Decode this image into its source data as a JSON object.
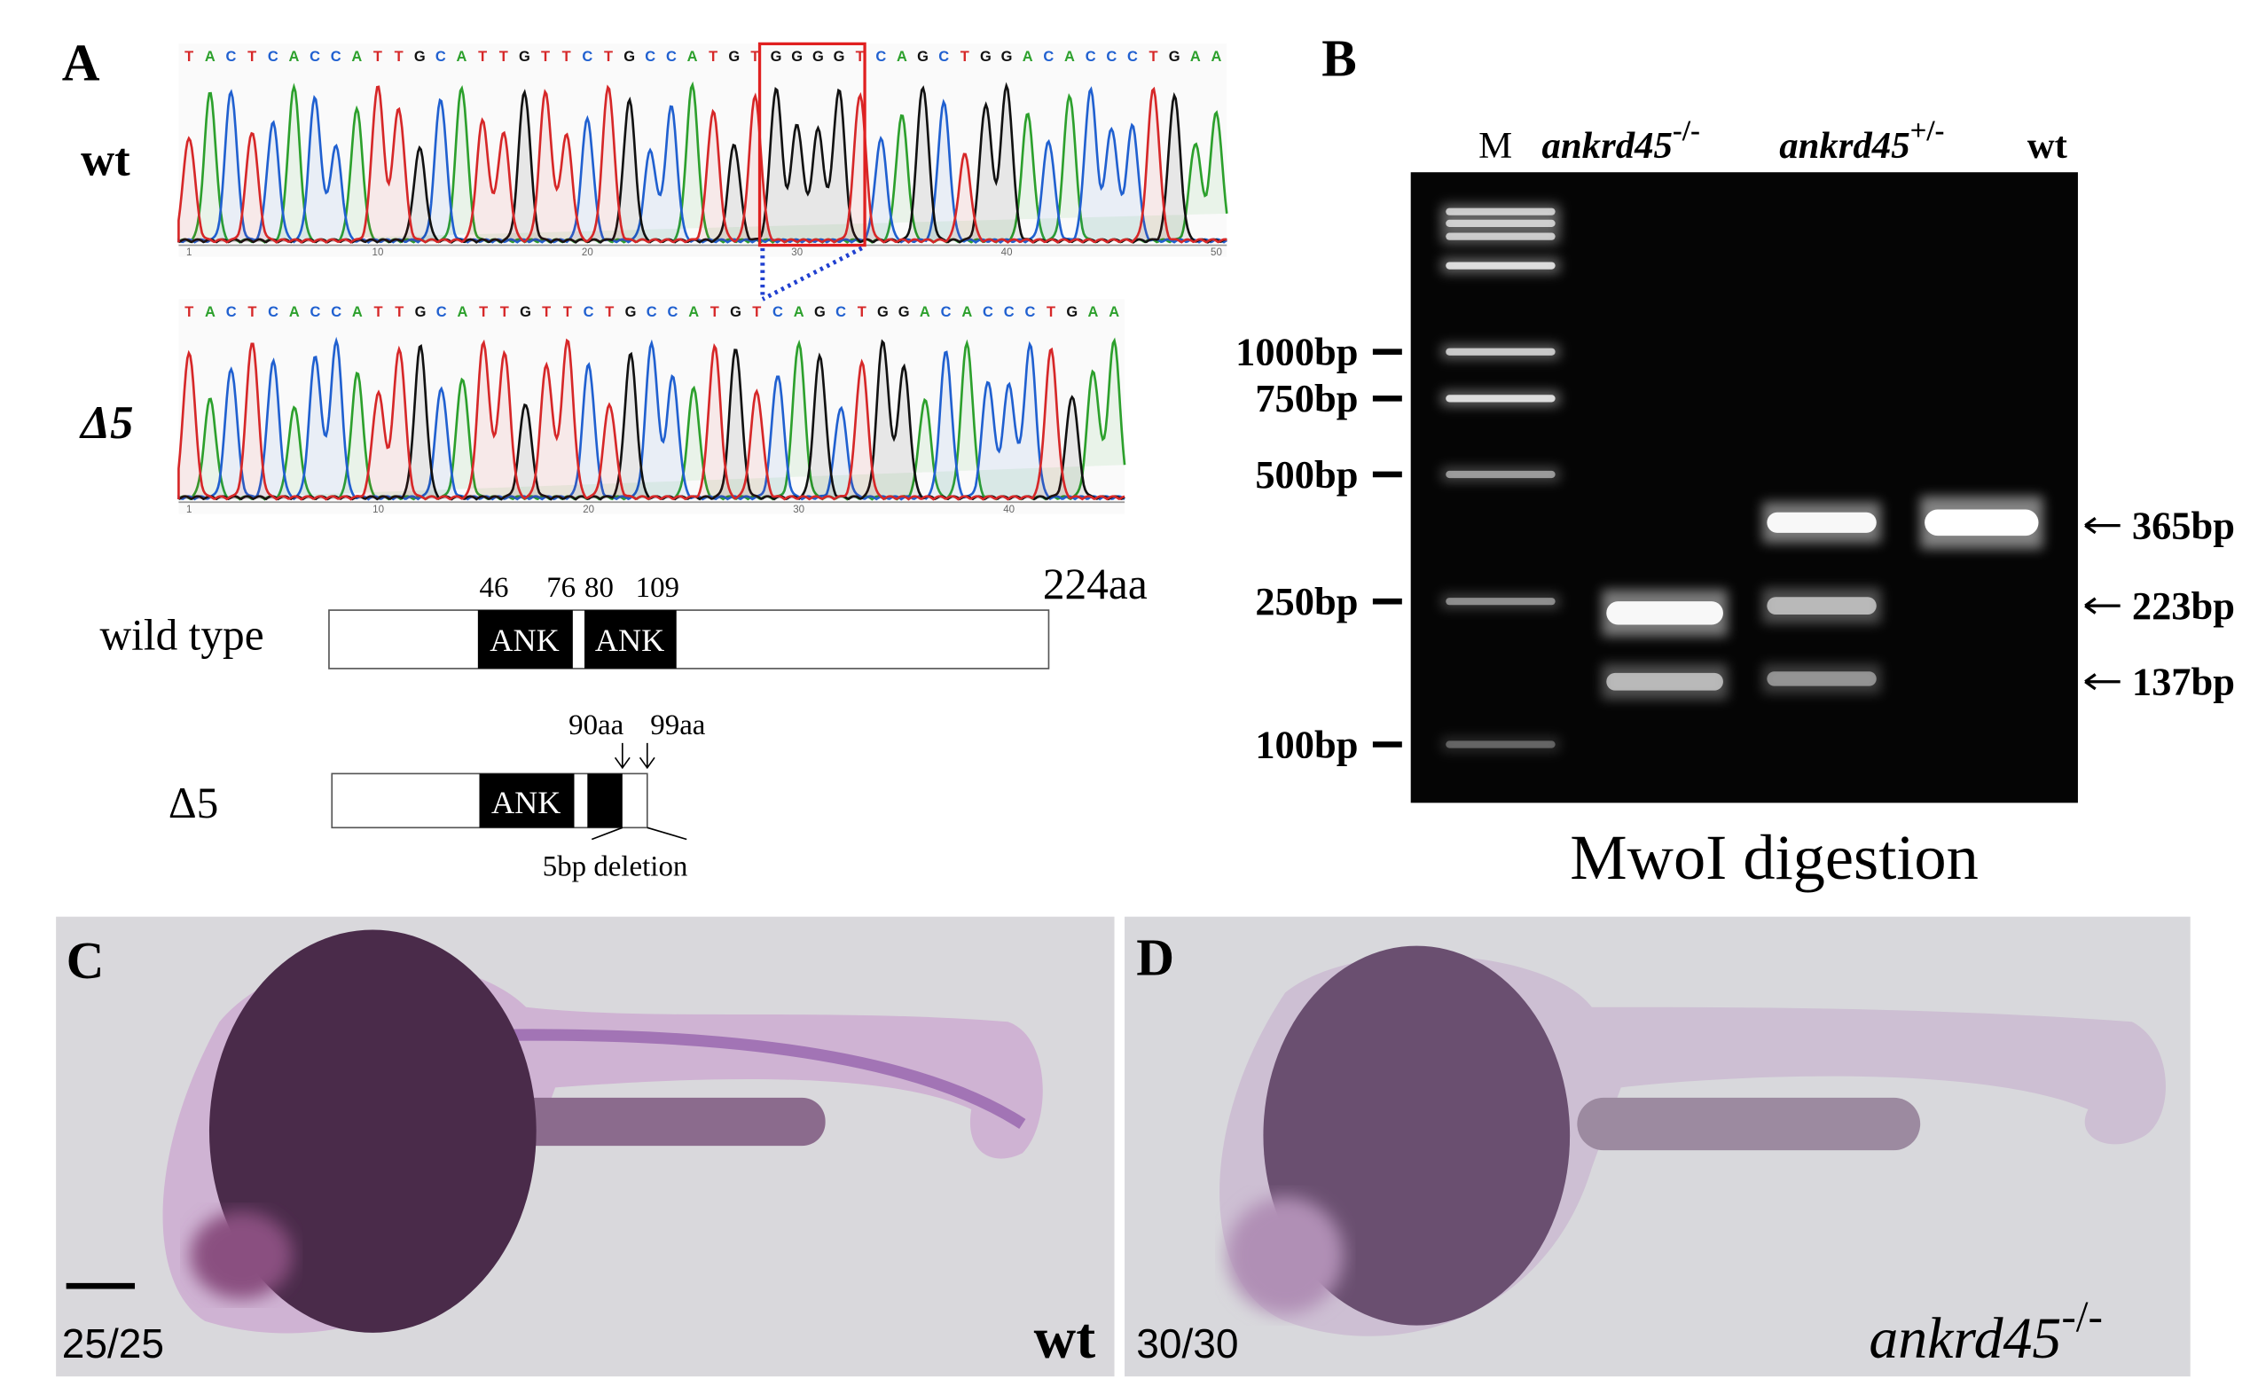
{
  "panel_a": {
    "label": "A",
    "wt_label": "wt",
    "mut_label": "Δ5",
    "wt_sequence": [
      "T",
      "A",
      "C",
      "T",
      "C",
      "A",
      "C",
      "C",
      "A",
      "T",
      "T",
      "G",
      "C",
      "A",
      "T",
      "T",
      "G",
      "T",
      "T",
      "C",
      "T",
      "G",
      "C",
      "C",
      "A",
      "T",
      "G",
      "T",
      "G",
      "G",
      "G",
      "G",
      "T",
      "C",
      "A",
      "G",
      "C",
      "T",
      "G",
      "G",
      "A",
      "C",
      "A",
      "C",
      "C",
      "C",
      "T",
      "G",
      "A",
      "A"
    ],
    "wt_positions": [
      "1",
      "10",
      "20",
      "30",
      "40",
      "50"
    ],
    "mut_sequence": [
      "T",
      "A",
      "C",
      "T",
      "C",
      "A",
      "C",
      "C",
      "A",
      "T",
      "T",
      "G",
      "C",
      "A",
      "T",
      "T",
      "G",
      "T",
      "T",
      "C",
      "T",
      "G",
      "C",
      "C",
      "A",
      "T",
      "G",
      "T",
      "C",
      "A",
      "G",
      "C",
      "T",
      "G",
      "G",
      "A",
      "C",
      "A",
      "C",
      "C",
      "C",
      "T",
      "G",
      "A",
      "A"
    ],
    "mut_positions": [
      "1",
      "10",
      "20",
      "30",
      "40"
    ],
    "wt_protein": {
      "label": "wild type",
      "length": "224aa",
      "domains": [
        "ANK",
        "ANK"
      ],
      "positions": [
        "46",
        "76",
        "80",
        "109"
      ]
    },
    "mut_protein": {
      "label": "Δ5",
      "domain": "ANK",
      "positions": [
        "90aa",
        "99aa"
      ],
      "note": "5bp deletion"
    }
  },
  "panel_b": {
    "label": "B",
    "lanes": [
      {
        "name": "M"
      },
      {
        "name": "ankrd45",
        "sup": "-/-"
      },
      {
        "name": "ankrd45",
        "sup": "+/-"
      },
      {
        "name": "wt"
      }
    ],
    "ladder": [
      "1000bp",
      "750bp",
      "500bp",
      "250bp",
      "100bp"
    ],
    "bands": [
      "365bp",
      "223bp",
      "137bp"
    ],
    "caption": "MwoI digestion"
  },
  "panel_c": {
    "label": "C",
    "count": "25/25",
    "genotype": "wt"
  },
  "panel_d": {
    "label": "D",
    "count": "30/30",
    "genotype": {
      "name": "ankrd45",
      "sup": "-/-"
    }
  }
}
